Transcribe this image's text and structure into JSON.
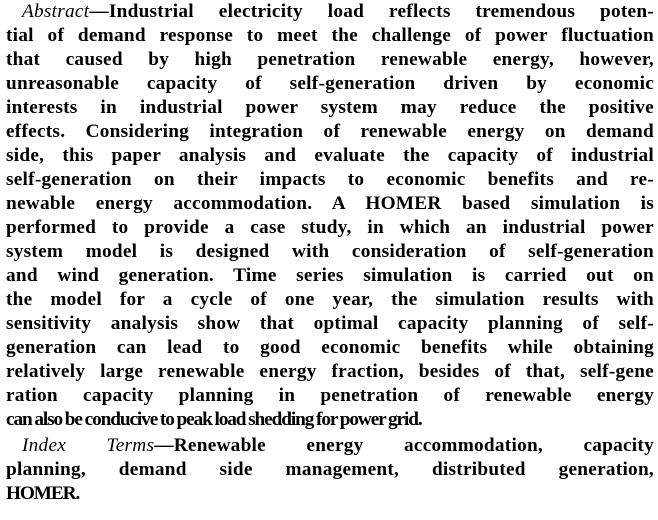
{
  "abstract": {
    "label": "Abstract",
    "lines": [
      "—Industrial electricity load reflects tremendous poten-",
      "tial of demand response to meet the challenge of power fluctuation",
      "that caused by high penetration renewable energy, however,",
      "unreasonable capacity of self-generation driven by economic",
      "interests in industrial power system may reduce the positive",
      "effects. Considering integration of renewable energy on demand",
      "side, this paper analysis and evaluate the capacity of industrial",
      "self-generation on their impacts to economic benefits and re-",
      "newable energy accommodation. A HOMER based simulation is",
      "performed to provide a case study, in which an industrial power",
      "system model is designed with consideration of self-generation",
      "and wind generation. Time series simulation is carried out on",
      "the model for a cycle of one year, the simulation results with",
      "sensitivity analysis show that optimal capacity planning of self-",
      "generation can lead to good economic benefits while obtaining",
      "relatively large renewable energy fraction, besides of that, self-gene",
      "ration capacity planning in penetration of renewable energy",
      "can also be conducive to peak load shedding for power grid."
    ]
  },
  "index_terms": {
    "label": "Index Terms",
    "lines": [
      "—Renewable energy accommodation, capacity",
      "planning, demand side management, distributed generation,",
      "HOMER."
    ]
  }
}
